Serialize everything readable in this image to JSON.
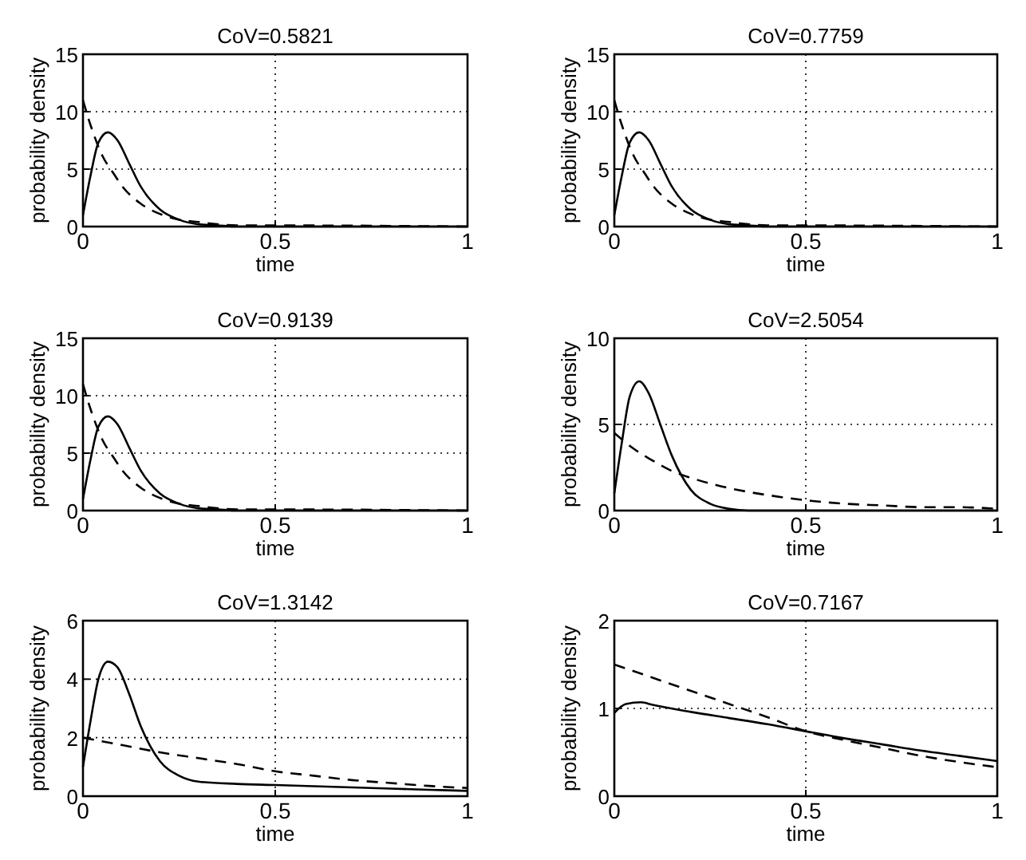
{
  "chart_data": [
    {
      "type": "line",
      "title": "CoV=0.5821",
      "xlabel": "time",
      "ylabel": "probability density",
      "xlim": [
        0,
        1
      ],
      "ylim": [
        0,
        15
      ],
      "xticks": [
        0,
        0.5,
        1
      ],
      "yticks": [
        0,
        5,
        10,
        15
      ],
      "grid": true,
      "series": [
        {
          "color": "#000000",
          "line_style": "solid",
          "x": [
            0,
            0.02,
            0.04,
            0.065,
            0.09,
            0.12,
            0.15,
            0.2,
            0.25,
            0.3,
            0.35,
            0.4,
            0.5,
            1
          ],
          "values": [
            1,
            4.5,
            7.3,
            8.2,
            7.5,
            5.5,
            3.5,
            1.5,
            0.6,
            0.2,
            0.1,
            0,
            0,
            0
          ]
        },
        {
          "color": "#000000",
          "line_style": "dashed",
          "x": [
            0,
            0.02,
            0.05,
            0.08,
            0.1,
            0.15,
            0.2,
            0.25,
            0.3,
            0.35,
            0.4,
            0.5,
            1
          ],
          "values": [
            11,
            8.8,
            6.2,
            4.6,
            3.6,
            2,
            1.1,
            0.6,
            0.4,
            0.2,
            0.1,
            0.1,
            0
          ]
        }
      ]
    },
    {
      "type": "line",
      "title": "CoV=0.7759",
      "xlabel": "time",
      "ylabel": "probability density",
      "xlim": [
        0,
        1
      ],
      "ylim": [
        0,
        15
      ],
      "xticks": [
        0,
        0.5,
        1
      ],
      "yticks": [
        0,
        5,
        10,
        15
      ],
      "grid": true,
      "series": [
        {
          "color": "#000000",
          "line_style": "solid",
          "x": [
            0,
            0.02,
            0.04,
            0.065,
            0.09,
            0.12,
            0.15,
            0.2,
            0.25,
            0.3,
            0.35,
            0.4,
            0.5,
            1
          ],
          "values": [
            1,
            4.5,
            7.3,
            8.2,
            7.5,
            5.5,
            3.5,
            1.5,
            0.6,
            0.2,
            0.1,
            0,
            0,
            0
          ]
        },
        {
          "color": "#000000",
          "line_style": "dashed",
          "x": [
            0,
            0.02,
            0.05,
            0.08,
            0.1,
            0.15,
            0.2,
            0.25,
            0.3,
            0.35,
            0.4,
            0.5,
            1
          ],
          "values": [
            11,
            8.8,
            6.2,
            4.6,
            3.6,
            2,
            1.1,
            0.6,
            0.4,
            0.2,
            0.1,
            0.1,
            0
          ]
        }
      ]
    },
    {
      "type": "line",
      "title": "CoV=0.9139",
      "xlabel": "time",
      "ylabel": "probability density",
      "xlim": [
        0,
        1
      ],
      "ylim": [
        0,
        15
      ],
      "xticks": [
        0,
        0.5,
        1
      ],
      "yticks": [
        0,
        5,
        10,
        15
      ],
      "grid": true,
      "series": [
        {
          "color": "#000000",
          "line_style": "solid",
          "x": [
            0,
            0.02,
            0.04,
            0.065,
            0.09,
            0.12,
            0.15,
            0.2,
            0.25,
            0.3,
            0.35,
            0.4,
            0.5,
            1
          ],
          "values": [
            1,
            4.5,
            7.3,
            8.2,
            7.5,
            5.5,
            3.5,
            1.5,
            0.6,
            0.2,
            0.1,
            0,
            0,
            0
          ]
        },
        {
          "color": "#000000",
          "line_style": "dashed",
          "x": [
            0,
            0.02,
            0.05,
            0.08,
            0.1,
            0.15,
            0.2,
            0.25,
            0.3,
            0.35,
            0.4,
            0.5,
            1
          ],
          "values": [
            11,
            8.8,
            6.2,
            4.6,
            3.6,
            2,
            1.1,
            0.6,
            0.4,
            0.2,
            0.1,
            0.1,
            0
          ]
        }
      ]
    },
    {
      "type": "line",
      "title": "CoV=2.5054",
      "xlabel": "time",
      "ylabel": "probability density",
      "xlim": [
        0,
        1
      ],
      "ylim": [
        0,
        10
      ],
      "xticks": [
        0,
        0.5,
        1
      ],
      "yticks": [
        0,
        5,
        10
      ],
      "grid": true,
      "series": [
        {
          "color": "#000000",
          "line_style": "solid",
          "x": [
            0,
            0.02,
            0.04,
            0.065,
            0.09,
            0.12,
            0.15,
            0.2,
            0.25,
            0.3,
            0.35,
            0.5,
            1
          ],
          "values": [
            1,
            4,
            6.6,
            7.5,
            6.8,
            5,
            3.2,
            1.2,
            0.4,
            0.1,
            0,
            0,
            0
          ]
        },
        {
          "color": "#000000",
          "line_style": "dashed",
          "x": [
            0,
            0.05,
            0.1,
            0.15,
            0.2,
            0.3,
            0.4,
            0.5,
            0.6,
            0.7,
            0.8,
            0.9,
            1
          ],
          "values": [
            4.5,
            3.6,
            2.9,
            2.3,
            1.9,
            1.3,
            0.9,
            0.6,
            0.4,
            0.3,
            0.2,
            0.2,
            0.1
          ]
        }
      ]
    },
    {
      "type": "line",
      "title": "CoV=1.3142",
      "xlabel": "time",
      "ylabel": "probability density",
      "xlim": [
        0,
        1
      ],
      "ylim": [
        0,
        6
      ],
      "xticks": [
        0,
        0.5,
        1
      ],
      "yticks": [
        0,
        2,
        4,
        6
      ],
      "grid": true,
      "series": [
        {
          "color": "#000000",
          "line_style": "solid",
          "x": [
            0,
            0.02,
            0.04,
            0.065,
            0.09,
            0.12,
            0.15,
            0.2,
            0.25,
            0.3,
            0.4,
            0.5,
            0.6,
            0.7,
            0.8,
            0.9,
            1
          ],
          "values": [
            1,
            2.6,
            4,
            4.6,
            4.4,
            3.5,
            2.4,
            1.2,
            0.7,
            0.5,
            0.42,
            0.38,
            0.34,
            0.3,
            0.26,
            0.22,
            0.18
          ]
        },
        {
          "color": "#000000",
          "line_style": "dashed",
          "x": [
            0,
            0.1,
            0.2,
            0.3,
            0.4,
            0.5,
            0.6,
            0.7,
            0.8,
            0.9,
            1
          ],
          "values": [
            2,
            1.75,
            1.5,
            1.3,
            1.1,
            0.85,
            0.7,
            0.55,
            0.45,
            0.35,
            0.28
          ]
        }
      ]
    },
    {
      "type": "line",
      "title": "CoV=0.7167",
      "xlabel": "time",
      "ylabel": "probability density",
      "xlim": [
        0,
        1
      ],
      "ylim": [
        0,
        2
      ],
      "xticks": [
        0,
        0.5,
        1
      ],
      "yticks": [
        0,
        1,
        2
      ],
      "grid": true,
      "series": [
        {
          "color": "#000000",
          "line_style": "solid",
          "x": [
            0,
            0.03,
            0.07,
            0.1,
            0.2,
            0.3,
            0.4,
            0.5,
            0.6,
            0.7,
            0.8,
            0.9,
            1
          ],
          "values": [
            0.95,
            1.05,
            1.07,
            1.04,
            0.96,
            0.89,
            0.82,
            0.74,
            0.66,
            0.59,
            0.52,
            0.46,
            0.4
          ]
        },
        {
          "color": "#000000",
          "line_style": "dashed",
          "x": [
            0,
            0.1,
            0.2,
            0.3,
            0.4,
            0.5,
            0.6,
            0.7,
            0.8,
            0.9,
            1
          ],
          "values": [
            1.5,
            1.35,
            1.2,
            1.05,
            0.9,
            0.74,
            0.64,
            0.55,
            0.46,
            0.39,
            0.33
          ]
        }
      ]
    }
  ]
}
